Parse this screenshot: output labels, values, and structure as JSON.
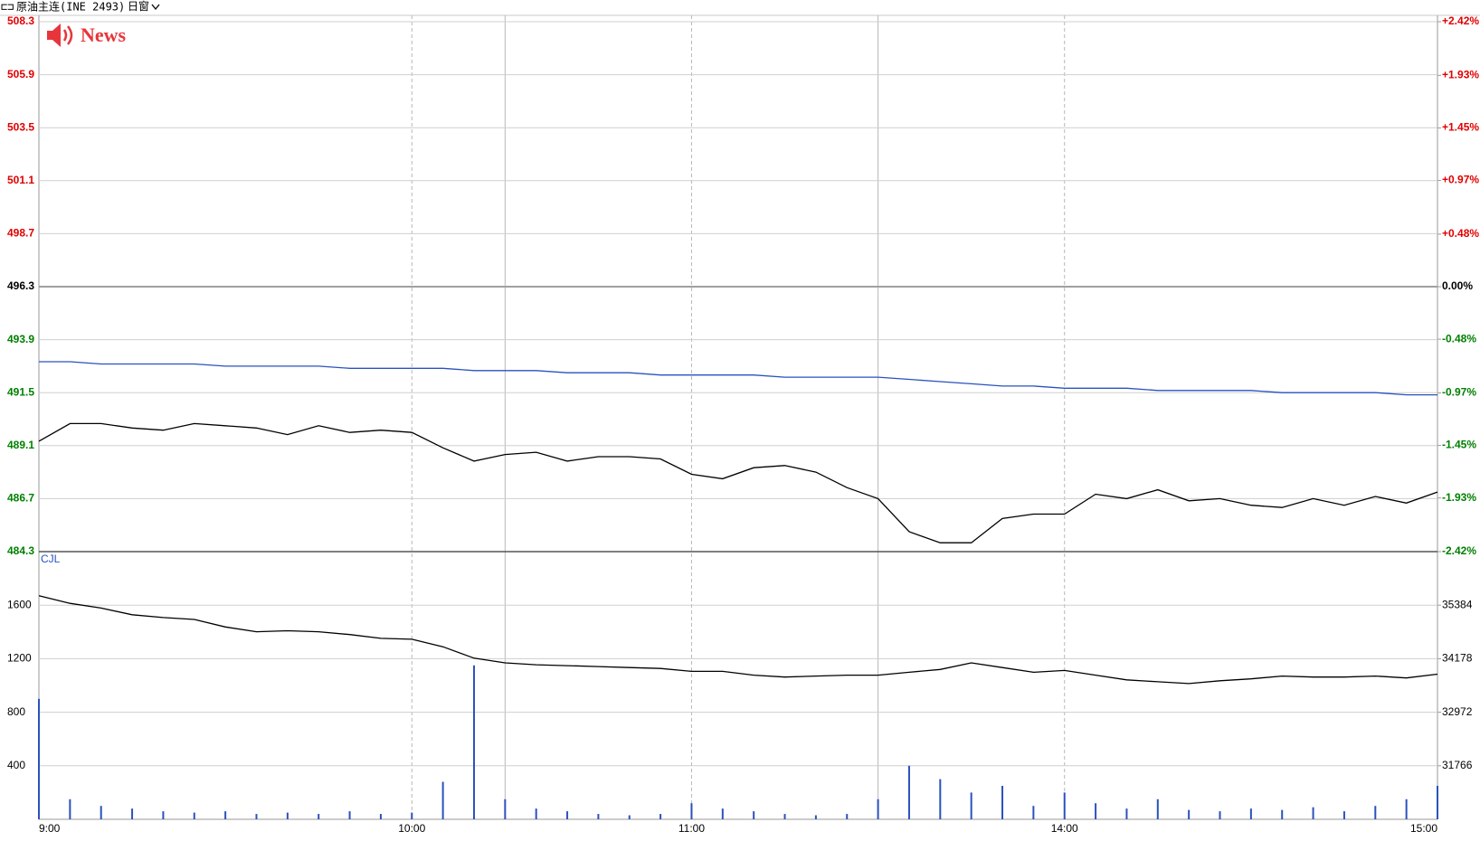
{
  "header": {
    "symbol": "原油主连(INE 2493)",
    "window": "日窗",
    "badge": "News"
  },
  "chart_data": [
    {
      "type": "line",
      "ylim": [
        484.3,
        508.3
      ],
      "yticks": [
        484.3,
        486.7,
        489.1,
        491.5,
        493.9,
        496.3,
        498.7,
        501.1,
        503.5,
        505.9,
        508.3
      ],
      "y2lim": [
        -2.42,
        2.42
      ],
      "y2ticks": [
        {
          "value": -2.42,
          "label": "-2.42%"
        },
        {
          "value": -1.93,
          "label": "-1.93%"
        },
        {
          "value": -1.45,
          "label": "-1.45%"
        },
        {
          "value": -0.97,
          "label": "-0.97%"
        },
        {
          "value": -0.48,
          "label": "-0.48%"
        },
        {
          "value": 0,
          "label": "0.00%"
        },
        {
          "value": 0.48,
          "label": "+0.48%"
        },
        {
          "value": 0.97,
          "label": "+0.97%"
        },
        {
          "value": 1.45,
          "label": "+1.45%"
        },
        {
          "value": 1.93,
          "label": "+1.93%"
        },
        {
          "value": 2.42,
          "label": "+2.42%"
        }
      ],
      "up_color": "#e00000",
      "down_color": "#008000",
      "flat_color": "#000000",
      "grid": true,
      "series": [
        {
          "color": "#000000",
          "values": [
            489.3,
            490.1,
            490.1,
            489.9,
            489.8,
            490.1,
            490.0,
            489.9,
            489.6,
            490.0,
            489.7,
            489.8,
            489.7,
            489.0,
            488.4,
            488.7,
            488.8,
            488.4,
            488.6,
            488.6,
            488.5,
            487.8,
            487.6,
            488.1,
            488.2,
            487.9,
            487.2,
            486.7,
            485.2,
            484.7,
            484.7,
            485.8,
            486.0,
            486.0,
            486.9,
            486.7,
            487.1,
            486.6,
            486.7,
            486.4,
            486.3,
            486.7,
            486.4,
            486.8,
            486.5,
            487.0
          ]
        },
        {
          "color": "#2a52be",
          "values": [
            492.9,
            492.9,
            492.8,
            492.8,
            492.8,
            492.8,
            492.7,
            492.7,
            492.7,
            492.7,
            492.6,
            492.6,
            492.6,
            492.6,
            492.5,
            492.5,
            492.5,
            492.4,
            492.4,
            492.4,
            492.3,
            492.3,
            492.3,
            492.3,
            492.2,
            492.2,
            492.2,
            492.2,
            492.1,
            492.0,
            491.9,
            491.8,
            491.8,
            491.7,
            491.7,
            491.7,
            491.6,
            491.6,
            491.6,
            491.6,
            491.5,
            491.5,
            491.5,
            491.5,
            491.4,
            491.4
          ]
        }
      ]
    },
    {
      "type": "bar",
      "categories": [
        "9:00",
        null,
        null,
        null,
        null,
        null,
        null,
        null,
        null,
        null,
        null,
        null,
        "10:00",
        null,
        null,
        null,
        null,
        null,
        null,
        null,
        null,
        "11:00",
        null,
        null,
        null,
        null,
        null,
        null,
        null,
        null,
        null,
        null,
        null,
        "14:00",
        null,
        null,
        null,
        null,
        null,
        null,
        null,
        null,
        null,
        null,
        null,
        "15:00"
      ],
      "ylim": [
        0,
        2000
      ],
      "yticks": [
        400,
        800,
        1200,
        1600
      ],
      "y2lim": [
        30560,
        36590
      ],
      "y2ticks": [
        31766,
        32972,
        34178,
        35384
      ],
      "grid": true,
      "series": [
        {
          "name": "CJL",
          "type": "bar",
          "color": "#2a52be",
          "values": [
            900,
            150,
            100,
            80,
            60,
            50,
            60,
            40,
            50,
            40,
            60,
            40,
            50,
            280,
            1150,
            150,
            80,
            60,
            40,
            30,
            40,
            120,
            80,
            60,
            40,
            30,
            40,
            150,
            400,
            300,
            200,
            250,
            100,
            200,
            120,
            80,
            150,
            70,
            60,
            80,
            70,
            90,
            60,
            100,
            150,
            250
          ]
        },
        {
          "type": "line",
          "axis": "y2",
          "color": "#000000",
          "values": [
            35595,
            35424,
            35318,
            35169,
            35105,
            35063,
            34893,
            34786,
            34808,
            34786,
            34722,
            34637,
            34616,
            34446,
            34191,
            34084,
            34042,
            34021,
            34000,
            33978,
            33957,
            33893,
            33893,
            33808,
            33765,
            33787,
            33808,
            33808,
            33872,
            33936,
            34084,
            33978,
            33872,
            33914,
            33808,
            33702,
            33659,
            33617,
            33680,
            33723,
            33787,
            33765,
            33765,
            33787,
            33744,
            33829
          ]
        }
      ]
    }
  ]
}
